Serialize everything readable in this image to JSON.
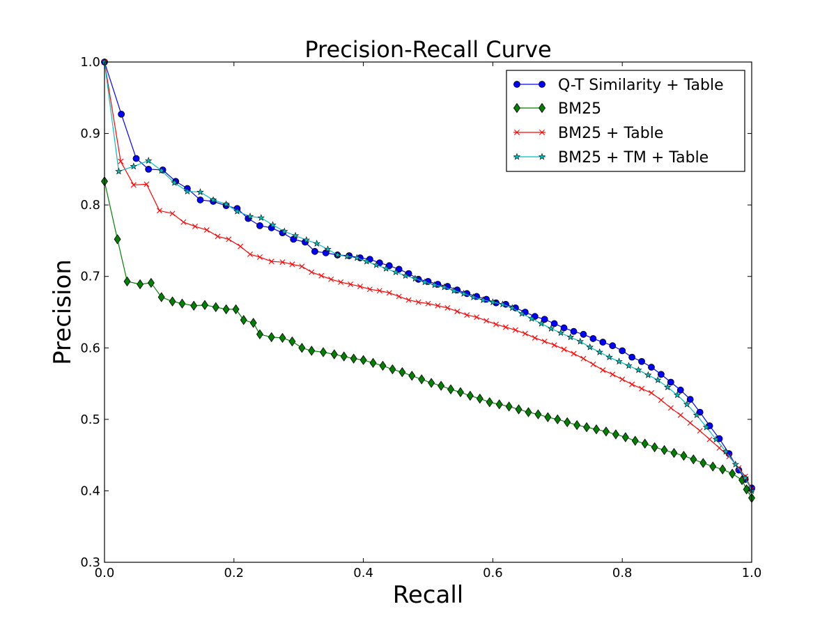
{
  "chart_data": {
    "type": "line",
    "title": "Precision-Recall Curve",
    "xlabel": "Recall",
    "ylabel": "Precision",
    "xlim": [
      0.0,
      1.0
    ],
    "ylim": [
      0.3,
      1.0
    ],
    "xticks": [
      "0.0",
      "0.2",
      "0.4",
      "0.6",
      "0.8",
      "1.0"
    ],
    "yticks": [
      "0.3",
      "0.4",
      "0.5",
      "0.6",
      "0.7",
      "0.8",
      "0.9",
      "1.0"
    ],
    "legend_position": "top-right",
    "grid": false,
    "series": [
      {
        "name": "Q-T Similarity + Table",
        "color": "#0000ff",
        "marker": "circle",
        "points": [
          [
            0.0,
            1.0
          ],
          [
            0.026,
            0.927
          ],
          [
            0.049,
            0.865
          ],
          [
            0.068,
            0.85
          ],
          [
            0.09,
            0.849
          ],
          [
            0.11,
            0.833
          ],
          [
            0.128,
            0.823
          ],
          [
            0.148,
            0.807
          ],
          [
            0.168,
            0.805
          ],
          [
            0.188,
            0.799
          ],
          [
            0.205,
            0.795
          ],
          [
            0.222,
            0.781
          ],
          [
            0.24,
            0.771
          ],
          [
            0.258,
            0.768
          ],
          [
            0.275,
            0.761
          ],
          [
            0.292,
            0.752
          ],
          [
            0.31,
            0.748
          ],
          [
            0.325,
            0.735
          ],
          [
            0.342,
            0.733
          ],
          [
            0.36,
            0.73
          ],
          [
            0.378,
            0.729
          ],
          [
            0.395,
            0.726
          ],
          [
            0.41,
            0.724
          ],
          [
            0.425,
            0.719
          ],
          [
            0.44,
            0.715
          ],
          [
            0.455,
            0.71
          ],
          [
            0.47,
            0.704
          ],
          [
            0.485,
            0.696
          ],
          [
            0.5,
            0.693
          ],
          [
            0.515,
            0.689
          ],
          [
            0.53,
            0.686
          ],
          [
            0.545,
            0.681
          ],
          [
            0.56,
            0.676
          ],
          [
            0.575,
            0.672
          ],
          [
            0.59,
            0.668
          ],
          [
            0.605,
            0.663
          ],
          [
            0.62,
            0.661
          ],
          [
            0.635,
            0.656
          ],
          [
            0.65,
            0.65
          ],
          [
            0.665,
            0.644
          ],
          [
            0.68,
            0.64
          ],
          [
            0.695,
            0.634
          ],
          [
            0.71,
            0.628
          ],
          [
            0.725,
            0.623
          ],
          [
            0.74,
            0.619
          ],
          [
            0.755,
            0.613
          ],
          [
            0.77,
            0.608
          ],
          [
            0.785,
            0.603
          ],
          [
            0.8,
            0.596
          ],
          [
            0.815,
            0.587
          ],
          [
            0.83,
            0.581
          ],
          [
            0.845,
            0.573
          ],
          [
            0.86,
            0.563
          ],
          [
            0.875,
            0.552
          ],
          [
            0.89,
            0.541
          ],
          [
            0.905,
            0.528
          ],
          [
            0.92,
            0.51
          ],
          [
            0.935,
            0.491
          ],
          [
            0.95,
            0.473
          ],
          [
            0.965,
            0.452
          ],
          [
            0.98,
            0.429
          ],
          [
            0.99,
            0.416
          ],
          [
            1.0,
            0.404
          ]
        ]
      },
      {
        "name": "BM25",
        "color": "#008000",
        "marker": "diamond",
        "points": [
          [
            0.0,
            0.833
          ],
          [
            0.02,
            0.752
          ],
          [
            0.035,
            0.693
          ],
          [
            0.055,
            0.689
          ],
          [
            0.072,
            0.691
          ],
          [
            0.088,
            0.671
          ],
          [
            0.105,
            0.665
          ],
          [
            0.12,
            0.662
          ],
          [
            0.138,
            0.659
          ],
          [
            0.155,
            0.66
          ],
          [
            0.172,
            0.657
          ],
          [
            0.188,
            0.654
          ],
          [
            0.203,
            0.654
          ],
          [
            0.215,
            0.639
          ],
          [
            0.23,
            0.635
          ],
          [
            0.24,
            0.619
          ],
          [
            0.258,
            0.615
          ],
          [
            0.275,
            0.614
          ],
          [
            0.29,
            0.609
          ],
          [
            0.305,
            0.6
          ],
          [
            0.32,
            0.596
          ],
          [
            0.338,
            0.594
          ],
          [
            0.355,
            0.591
          ],
          [
            0.37,
            0.588
          ],
          [
            0.385,
            0.585
          ],
          [
            0.4,
            0.583
          ],
          [
            0.415,
            0.579
          ],
          [
            0.43,
            0.575
          ],
          [
            0.445,
            0.57
          ],
          [
            0.46,
            0.566
          ],
          [
            0.475,
            0.561
          ],
          [
            0.49,
            0.556
          ],
          [
            0.505,
            0.551
          ],
          [
            0.52,
            0.547
          ],
          [
            0.535,
            0.542
          ],
          [
            0.55,
            0.538
          ],
          [
            0.565,
            0.533
          ],
          [
            0.58,
            0.529
          ],
          [
            0.595,
            0.524
          ],
          [
            0.61,
            0.521
          ],
          [
            0.625,
            0.518
          ],
          [
            0.64,
            0.514
          ],
          [
            0.655,
            0.51
          ],
          [
            0.67,
            0.507
          ],
          [
            0.685,
            0.503
          ],
          [
            0.7,
            0.5
          ],
          [
            0.715,
            0.496
          ],
          [
            0.73,
            0.492
          ],
          [
            0.745,
            0.489
          ],
          [
            0.76,
            0.486
          ],
          [
            0.775,
            0.483
          ],
          [
            0.79,
            0.479
          ],
          [
            0.805,
            0.475
          ],
          [
            0.82,
            0.47
          ],
          [
            0.835,
            0.466
          ],
          [
            0.85,
            0.461
          ],
          [
            0.865,
            0.457
          ],
          [
            0.88,
            0.453
          ],
          [
            0.895,
            0.449
          ],
          [
            0.91,
            0.444
          ],
          [
            0.925,
            0.439
          ],
          [
            0.94,
            0.434
          ],
          [
            0.955,
            0.43
          ],
          [
            0.97,
            0.424
          ],
          [
            0.985,
            0.415
          ],
          [
            0.992,
            0.402
          ],
          [
            1.0,
            0.39
          ]
        ]
      },
      {
        "name": "BM25 + Table",
        "color": "#ff0000",
        "marker": "x",
        "points": [
          [
            0.0,
            1.0
          ],
          [
            0.025,
            0.861
          ],
          [
            0.045,
            0.828
          ],
          [
            0.065,
            0.829
          ],
          [
            0.085,
            0.792
          ],
          [
            0.105,
            0.788
          ],
          [
            0.122,
            0.776
          ],
          [
            0.14,
            0.77
          ],
          [
            0.158,
            0.765
          ],
          [
            0.175,
            0.756
          ],
          [
            0.192,
            0.752
          ],
          [
            0.21,
            0.742
          ],
          [
            0.225,
            0.731
          ],
          [
            0.24,
            0.727
          ],
          [
            0.258,
            0.721
          ],
          [
            0.275,
            0.72
          ],
          [
            0.29,
            0.717
          ],
          [
            0.305,
            0.714
          ],
          [
            0.32,
            0.706
          ],
          [
            0.335,
            0.701
          ],
          [
            0.35,
            0.696
          ],
          [
            0.365,
            0.692
          ],
          [
            0.38,
            0.689
          ],
          [
            0.395,
            0.686
          ],
          [
            0.41,
            0.682
          ],
          [
            0.425,
            0.68
          ],
          [
            0.44,
            0.677
          ],
          [
            0.455,
            0.672
          ],
          [
            0.47,
            0.667
          ],
          [
            0.485,
            0.664
          ],
          [
            0.5,
            0.662
          ],
          [
            0.515,
            0.659
          ],
          [
            0.53,
            0.656
          ],
          [
            0.545,
            0.651
          ],
          [
            0.56,
            0.646
          ],
          [
            0.575,
            0.643
          ],
          [
            0.59,
            0.638
          ],
          [
            0.605,
            0.633
          ],
          [
            0.62,
            0.629
          ],
          [
            0.635,
            0.625
          ],
          [
            0.65,
            0.62
          ],
          [
            0.665,
            0.614
          ],
          [
            0.68,
            0.609
          ],
          [
            0.695,
            0.604
          ],
          [
            0.71,
            0.598
          ],
          [
            0.725,
            0.592
          ],
          [
            0.74,
            0.585
          ],
          [
            0.755,
            0.577
          ],
          [
            0.77,
            0.569
          ],
          [
            0.785,
            0.563
          ],
          [
            0.8,
            0.556
          ],
          [
            0.815,
            0.549
          ],
          [
            0.83,
            0.543
          ],
          [
            0.845,
            0.537
          ],
          [
            0.86,
            0.527
          ],
          [
            0.875,
            0.516
          ],
          [
            0.89,
            0.506
          ],
          [
            0.905,
            0.495
          ],
          [
            0.92,
            0.484
          ],
          [
            0.935,
            0.472
          ],
          [
            0.95,
            0.46
          ],
          [
            0.965,
            0.448
          ],
          [
            0.98,
            0.432
          ],
          [
            0.99,
            0.42
          ],
          [
            1.0,
            0.402
          ]
        ]
      },
      {
        "name": "BM25 + TM + Table",
        "color": "#00bfbf",
        "marker": "star",
        "points": [
          [
            0.0,
            1.0
          ],
          [
            0.022,
            0.847
          ],
          [
            0.045,
            0.854
          ],
          [
            0.068,
            0.862
          ],
          [
            0.088,
            0.848
          ],
          [
            0.108,
            0.831
          ],
          [
            0.128,
            0.819
          ],
          [
            0.148,
            0.818
          ],
          [
            0.168,
            0.807
          ],
          [
            0.188,
            0.801
          ],
          [
            0.205,
            0.791
          ],
          [
            0.225,
            0.784
          ],
          [
            0.242,
            0.782
          ],
          [
            0.26,
            0.772
          ],
          [
            0.278,
            0.763
          ],
          [
            0.295,
            0.757
          ],
          [
            0.312,
            0.751
          ],
          [
            0.328,
            0.746
          ],
          [
            0.345,
            0.738
          ],
          [
            0.36,
            0.73
          ],
          [
            0.375,
            0.728
          ],
          [
            0.39,
            0.726
          ],
          [
            0.405,
            0.721
          ],
          [
            0.42,
            0.716
          ],
          [
            0.435,
            0.711
          ],
          [
            0.45,
            0.706
          ],
          [
            0.465,
            0.701
          ],
          [
            0.48,
            0.697
          ],
          [
            0.495,
            0.692
          ],
          [
            0.51,
            0.688
          ],
          [
            0.525,
            0.685
          ],
          [
            0.54,
            0.68
          ],
          [
            0.555,
            0.676
          ],
          [
            0.57,
            0.671
          ],
          [
            0.585,
            0.667
          ],
          [
            0.6,
            0.664
          ],
          [
            0.615,
            0.661
          ],
          [
            0.63,
            0.656
          ],
          [
            0.645,
            0.648
          ],
          [
            0.66,
            0.641
          ],
          [
            0.675,
            0.634
          ],
          [
            0.69,
            0.627
          ],
          [
            0.705,
            0.621
          ],
          [
            0.72,
            0.615
          ],
          [
            0.735,
            0.609
          ],
          [
            0.75,
            0.601
          ],
          [
            0.765,
            0.594
          ],
          [
            0.78,
            0.587
          ],
          [
            0.795,
            0.581
          ],
          [
            0.81,
            0.575
          ],
          [
            0.825,
            0.569
          ],
          [
            0.84,
            0.562
          ],
          [
            0.855,
            0.555
          ],
          [
            0.87,
            0.545
          ],
          [
            0.885,
            0.534
          ],
          [
            0.9,
            0.521
          ],
          [
            0.915,
            0.506
          ],
          [
            0.93,
            0.489
          ],
          [
            0.945,
            0.472
          ],
          [
            0.96,
            0.455
          ],
          [
            0.975,
            0.437
          ],
          [
            0.99,
            0.418
          ],
          [
            1.0,
            0.4
          ]
        ]
      }
    ]
  }
}
